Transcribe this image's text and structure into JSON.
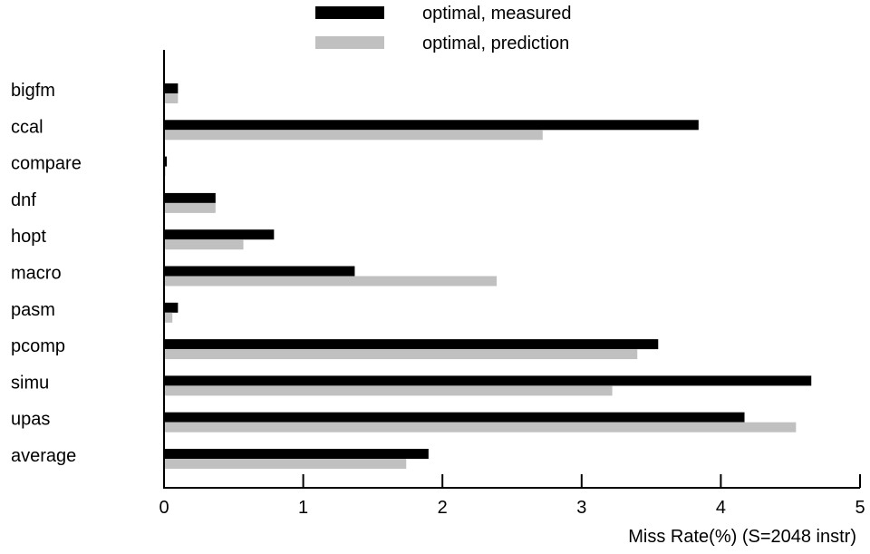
{
  "chart_data": {
    "type": "bar",
    "orientation": "horizontal",
    "categories": [
      "bigfm",
      "ccal",
      "compare",
      "dnf",
      "hopt",
      "macro",
      "pasm",
      "pcomp",
      "simu",
      "upas",
      "average"
    ],
    "series": [
      {
        "name": "optimal, measured",
        "color": "#000000",
        "values": [
          0.1,
          3.84,
          0.02,
          0.37,
          0.79,
          1.37,
          0.1,
          3.55,
          4.65,
          4.17,
          1.9
        ]
      },
      {
        "name": "optimal, prediction",
        "color": "#c0c0c0",
        "values": [
          0.1,
          2.72,
          0.01,
          0.37,
          0.57,
          2.39,
          0.06,
          3.4,
          3.22,
          4.54,
          1.74
        ]
      }
    ],
    "xlabel": "Miss Rate(%) (S=2048 instr)",
    "ylabel": "",
    "xlim": [
      0,
      5
    ],
    "xticks": [
      "0",
      "1",
      "2",
      "3",
      "4",
      "5"
    ],
    "grid": false,
    "legend_position": "top-center"
  }
}
